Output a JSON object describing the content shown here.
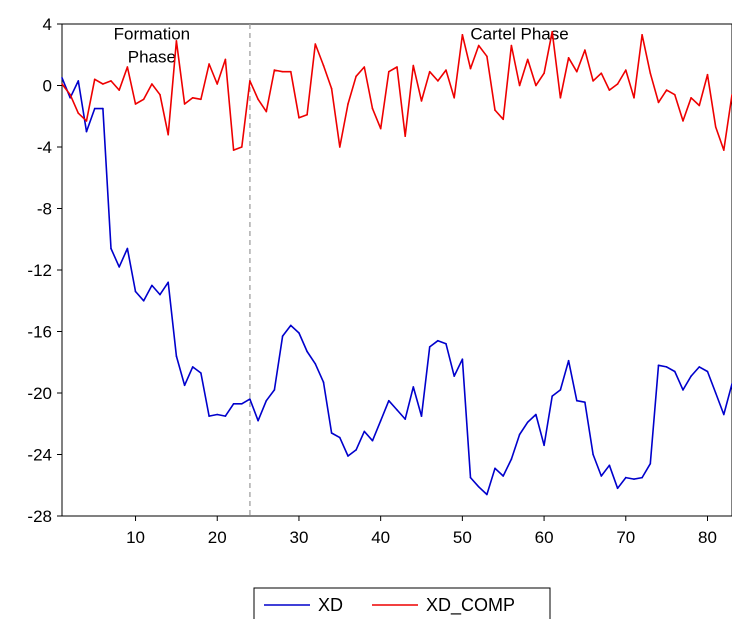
{
  "chart_data": {
    "type": "line",
    "title": "",
    "xlabel": "",
    "ylabel": "",
    "xlim": [
      1,
      83
    ],
    "ylim": [
      -28,
      4
    ],
    "x_ticks": [
      10,
      20,
      30,
      40,
      50,
      60,
      70,
      80
    ],
    "y_ticks": [
      4,
      0,
      -4,
      -8,
      -12,
      -16,
      -20,
      -24,
      -28
    ],
    "grid": false,
    "legend_position": "bottom",
    "vline": {
      "x": 24,
      "style": "dashed",
      "color": "#a0a0a0"
    },
    "annotations": [
      {
        "lines": [
          "Formation",
          "Phase"
        ],
        "x": 12,
        "y": 3
      },
      {
        "lines": [
          "Cartel Phase"
        ],
        "x": 57,
        "y": 3
      }
    ],
    "x": [
      1,
      2,
      3,
      4,
      5,
      6,
      7,
      8,
      9,
      10,
      11,
      12,
      13,
      14,
      15,
      16,
      17,
      18,
      19,
      20,
      21,
      22,
      23,
      24,
      25,
      26,
      27,
      28,
      29,
      30,
      31,
      32,
      33,
      34,
      35,
      36,
      37,
      38,
      39,
      40,
      41,
      42,
      43,
      44,
      45,
      46,
      47,
      48,
      49,
      50,
      51,
      52,
      53,
      54,
      55,
      56,
      57,
      58,
      59,
      60,
      61,
      62,
      63,
      64,
      65,
      66,
      67,
      68,
      69,
      70,
      71,
      72,
      73,
      74,
      75,
      76,
      77,
      78,
      79,
      80,
      81,
      82,
      83
    ],
    "series": [
      {
        "name": "XD",
        "color": "#0000cc",
        "values": [
          0.5,
          -0.8,
          0.3,
          -3.0,
          -1.5,
          -1.5,
          -10.6,
          -11.8,
          -10.6,
          -13.4,
          -14.0,
          -13.0,
          -13.6,
          -12.8,
          -17.6,
          -19.5,
          -18.3,
          -18.7,
          -21.5,
          -21.4,
          -21.5,
          -20.7,
          -20.7,
          -20.4,
          -21.8,
          -20.5,
          -19.8,
          -16.3,
          -15.6,
          -16.1,
          -17.3,
          -18.1,
          -19.3,
          -22.6,
          -22.9,
          -24.1,
          -23.7,
          -22.5,
          -23.1,
          -21.8,
          -20.5,
          -21.1,
          -21.7,
          -19.6,
          -21.5,
          -17.0,
          -16.6,
          -16.8,
          -18.9,
          -17.8,
          -25.5,
          -26.1,
          -26.6,
          -24.9,
          -25.4,
          -24.3,
          -22.7,
          -21.9,
          -21.4,
          -23.4,
          -20.2,
          -19.8,
          -17.9,
          -20.5,
          -20.6,
          -24.0,
          -25.4,
          -24.7,
          -26.2,
          -25.5,
          -25.6,
          -25.5,
          -24.6,
          -18.2,
          -18.3,
          -18.6,
          -19.8,
          -18.9,
          -18.3,
          -18.6,
          -20.0,
          -21.4,
          -19.4
        ]
      },
      {
        "name": "XD_COMP",
        "color": "#ee0000",
        "values": [
          0.1,
          -0.6,
          -1.8,
          -2.3,
          0.4,
          0.1,
          0.3,
          -0.3,
          1.2,
          -1.2,
          -0.9,
          0.1,
          -0.6,
          -3.2,
          2.9,
          -1.2,
          -0.8,
          -0.9,
          1.4,
          0.1,
          1.7,
          -4.2,
          -4.0,
          0.3,
          -0.9,
          -1.7,
          1.0,
          0.9,
          0.9,
          -2.1,
          -1.9,
          2.7,
          1.3,
          -0.2,
          -4.0,
          -1.2,
          0.6,
          1.2,
          -1.5,
          -2.8,
          0.9,
          1.2,
          -3.3,
          1.3,
          -1.0,
          0.9,
          0.3,
          1.0,
          -0.8,
          3.3,
          1.1,
          2.6,
          1.9,
          -1.6,
          -2.2,
          2.6,
          0.0,
          1.7,
          0.0,
          0.8,
          3.5,
          -0.8,
          1.8,
          0.9,
          2.3,
          0.3,
          0.8,
          -0.3,
          0.1,
          1.0,
          -0.8,
          3.3,
          0.8,
          -1.1,
          -0.3,
          -0.6,
          -2.3,
          -0.8,
          -1.3,
          0.7,
          -2.7,
          -4.2,
          -0.6
        ]
      }
    ]
  }
}
